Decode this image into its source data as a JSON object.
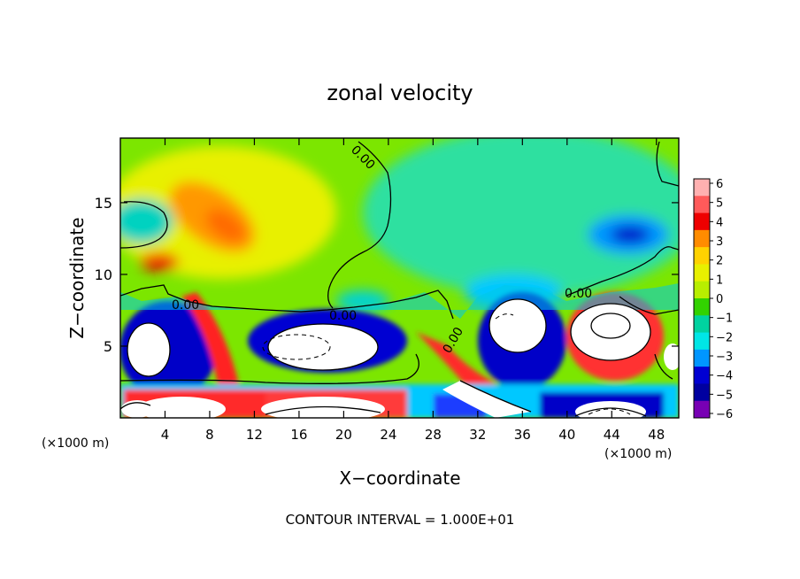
{
  "chart_data": {
    "type": "heatmap",
    "title": "zonal velocity",
    "xlabel": "X−coordinate",
    "ylabel": "Z−coordinate",
    "x_unit_left": "(×1000 m)",
    "x_unit_right": "(×1000 m)",
    "xlim": [
      0,
      50
    ],
    "ylim": [
      0,
      19.5
    ],
    "x_ticks": [
      4,
      8,
      12,
      16,
      20,
      24,
      28,
      32,
      36,
      40,
      44,
      48
    ],
    "y_ticks": [
      5,
      10,
      15
    ],
    "colorbar": {
      "ticks": [
        6,
        5,
        4,
        3,
        2,
        1,
        0,
        -1,
        -2,
        -3,
        -4,
        -5,
        -6
      ],
      "colors": [
        "#ffb0b0",
        "#ff5a5a",
        "#ee0000",
        "#ff8c00",
        "#ffd200",
        "#e8f000",
        "#b8ee00",
        "#32d200",
        "#00d2a0",
        "#00e6e6",
        "#0096ff",
        "#0000d2",
        "#0000a0",
        "#7800b4"
      ]
    },
    "contour_labels": [
      "0.00",
      "0.00",
      "0.00",
      "0.00",
      "0.00"
    ],
    "footer": "CONTOUR INTERVAL = 1.000E+01"
  }
}
